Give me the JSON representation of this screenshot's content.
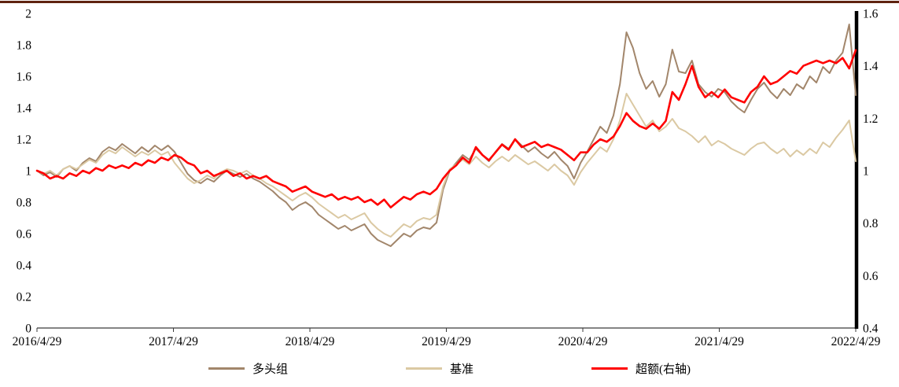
{
  "page": {
    "background": "#FFFFFF",
    "top_border_color": "#5F2310",
    "axis_line_color": "#3A3A3A",
    "right_axis_line_color": "#000000"
  },
  "chart_data": {
    "type": "line",
    "title": "",
    "grid": false,
    "legend_position": "bottom",
    "x_tick_labels": [
      "2016/4/29",
      "2017/4/29",
      "2018/4/29",
      "2019/4/29",
      "2020/4/29",
      "2021/4/29",
      "2022/4/29"
    ],
    "left_axis": {
      "min": 0,
      "max": 2,
      "ticks": [
        "0",
        "0.2",
        "0.4",
        "0.6",
        "0.8",
        "1",
        "1.2",
        "1.4",
        "1.6",
        "1.8",
        "2"
      ]
    },
    "right_axis": {
      "min": 0.4,
      "max": 1.6,
      "ticks": [
        "0.4",
        "0.6",
        "0.8",
        "1",
        "1.2",
        "1.4",
        "1.6"
      ]
    },
    "series": [
      {
        "name": "多头组",
        "axis": "left",
        "color": "#A2866B",
        "line_width": 2,
        "values": [
          1.0,
          0.97,
          0.99,
          0.96,
          1.01,
          1.03,
          1.0,
          1.05,
          1.08,
          1.06,
          1.12,
          1.15,
          1.13,
          1.17,
          1.14,
          1.11,
          1.15,
          1.12,
          1.16,
          1.13,
          1.16,
          1.12,
          1.05,
          0.98,
          0.94,
          0.92,
          0.95,
          0.93,
          0.97,
          1.0,
          0.98,
          0.96,
          0.98,
          0.95,
          0.93,
          0.9,
          0.87,
          0.83,
          0.8,
          0.75,
          0.78,
          0.8,
          0.77,
          0.72,
          0.69,
          0.66,
          0.63,
          0.65,
          0.62,
          0.64,
          0.66,
          0.6,
          0.56,
          0.54,
          0.52,
          0.56,
          0.6,
          0.58,
          0.62,
          0.64,
          0.63,
          0.67,
          0.88,
          1.0,
          1.05,
          1.1,
          1.07,
          1.14,
          1.1,
          1.06,
          1.12,
          1.17,
          1.14,
          1.2,
          1.16,
          1.12,
          1.15,
          1.11,
          1.08,
          1.12,
          1.07,
          1.03,
          0.95,
          1.05,
          1.12,
          1.2,
          1.28,
          1.24,
          1.35,
          1.55,
          1.88,
          1.78,
          1.62,
          1.52,
          1.57,
          1.47,
          1.55,
          1.77,
          1.63,
          1.62,
          1.7,
          1.55,
          1.5,
          1.47,
          1.52,
          1.5,
          1.44,
          1.4,
          1.37,
          1.45,
          1.52,
          1.56,
          1.5,
          1.46,
          1.52,
          1.48,
          1.55,
          1.52,
          1.6,
          1.56,
          1.66,
          1.62,
          1.7,
          1.75,
          1.93,
          1.48
        ]
      },
      {
        "name": "基准",
        "axis": "left",
        "color": "#DBC9A3",
        "line_width": 2,
        "values": [
          1.0,
          0.98,
          1.0,
          0.97,
          1.01,
          1.03,
          1.01,
          1.04,
          1.07,
          1.05,
          1.1,
          1.13,
          1.11,
          1.15,
          1.12,
          1.09,
          1.12,
          1.1,
          1.13,
          1.1,
          1.12,
          1.05,
          1.0,
          0.95,
          0.92,
          0.94,
          0.97,
          0.95,
          0.99,
          1.01,
          1.0,
          0.98,
          1.0,
          0.97,
          0.95,
          0.92,
          0.9,
          0.87,
          0.84,
          0.81,
          0.84,
          0.86,
          0.83,
          0.79,
          0.76,
          0.73,
          0.7,
          0.72,
          0.69,
          0.71,
          0.73,
          0.67,
          0.63,
          0.6,
          0.58,
          0.62,
          0.66,
          0.64,
          0.68,
          0.7,
          0.69,
          0.72,
          0.9,
          1.01,
          1.04,
          1.07,
          1.04,
          1.09,
          1.05,
          1.02,
          1.06,
          1.09,
          1.06,
          1.1,
          1.07,
          1.04,
          1.06,
          1.03,
          1.0,
          1.04,
          1.0,
          0.97,
          0.91,
          0.99,
          1.05,
          1.1,
          1.15,
          1.12,
          1.2,
          1.32,
          1.49,
          1.42,
          1.35,
          1.28,
          1.32,
          1.25,
          1.28,
          1.33,
          1.27,
          1.25,
          1.22,
          1.18,
          1.22,
          1.16,
          1.19,
          1.17,
          1.14,
          1.12,
          1.1,
          1.14,
          1.17,
          1.18,
          1.14,
          1.11,
          1.14,
          1.09,
          1.13,
          1.1,
          1.14,
          1.11,
          1.18,
          1.15,
          1.21,
          1.26,
          1.32,
          1.06
        ]
      },
      {
        "name": "超额(右轴)",
        "axis": "right",
        "color": "#FF0000",
        "line_width": 2.6,
        "values": [
          1.0,
          0.99,
          0.97,
          0.98,
          0.97,
          0.99,
          0.98,
          1.0,
          0.99,
          1.01,
          1.0,
          1.02,
          1.01,
          1.02,
          1.01,
          1.03,
          1.02,
          1.04,
          1.03,
          1.05,
          1.04,
          1.06,
          1.05,
          1.03,
          1.02,
          0.99,
          1.0,
          0.98,
          0.99,
          1.0,
          0.98,
          0.99,
          0.97,
          0.98,
          0.97,
          0.98,
          0.96,
          0.95,
          0.94,
          0.92,
          0.93,
          0.94,
          0.92,
          0.91,
          0.9,
          0.91,
          0.89,
          0.9,
          0.89,
          0.9,
          0.88,
          0.89,
          0.87,
          0.89,
          0.86,
          0.88,
          0.9,
          0.89,
          0.91,
          0.92,
          0.91,
          0.93,
          0.97,
          1.0,
          1.02,
          1.05,
          1.03,
          1.09,
          1.06,
          1.04,
          1.07,
          1.1,
          1.08,
          1.12,
          1.09,
          1.1,
          1.11,
          1.09,
          1.1,
          1.09,
          1.08,
          1.06,
          1.04,
          1.07,
          1.07,
          1.1,
          1.12,
          1.11,
          1.13,
          1.17,
          1.22,
          1.19,
          1.17,
          1.16,
          1.18,
          1.16,
          1.19,
          1.3,
          1.27,
          1.33,
          1.4,
          1.32,
          1.28,
          1.3,
          1.28,
          1.31,
          1.28,
          1.27,
          1.26,
          1.3,
          1.32,
          1.36,
          1.33,
          1.34,
          1.36,
          1.38,
          1.37,
          1.4,
          1.41,
          1.42,
          1.41,
          1.42,
          1.41,
          1.43,
          1.39,
          1.46
        ]
      }
    ]
  }
}
